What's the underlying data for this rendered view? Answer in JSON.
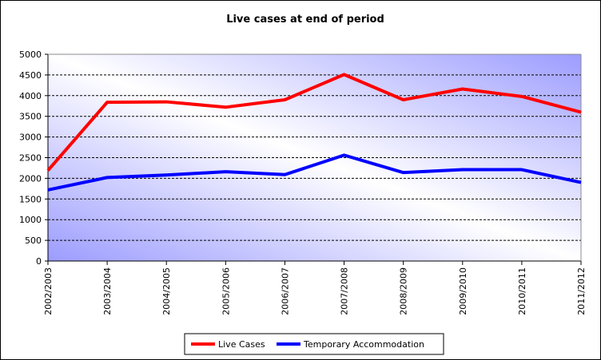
{
  "chart_data": {
    "type": "line",
    "title": "Live cases at end of period",
    "xlabel": "",
    "ylabel": "",
    "categories": [
      "2002/2003",
      "2003/2004",
      "2004/2005",
      "2005/2006",
      "2006/2007",
      "2007/2008",
      "2008/2009",
      "2009/2010",
      "2010/2011",
      "2011/2012"
    ],
    "ylim": [
      0,
      5000
    ],
    "yticks": [
      "0",
      "500",
      "1000",
      "1500",
      "2000",
      "2500",
      "3000",
      "3500",
      "4000",
      "4500",
      "5000"
    ],
    "grid": "horizontal dashed",
    "legend_position": "bottom",
    "series": [
      {
        "name": "Live Cases",
        "color": "#ff0000",
        "values": [
          2190,
          3840,
          3850,
          3720,
          3900,
          4510,
          3900,
          4160,
          3980,
          3600
        ]
      },
      {
        "name": "Temporary Accommodation",
        "color": "#0000ff",
        "values": [
          1720,
          2020,
          2080,
          2160,
          2090,
          2560,
          2140,
          2210,
          2210,
          1900
        ]
      }
    ],
    "plot_background": [
      "#9c9cff",
      "#ffffff",
      "#9c9cff"
    ]
  }
}
